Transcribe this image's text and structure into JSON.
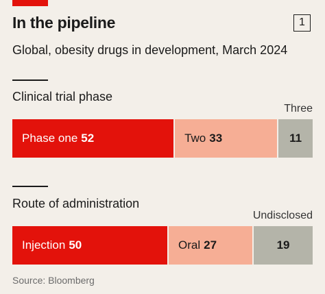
{
  "header": {
    "title": "In the pipeline",
    "figure_number": "1",
    "subtitle": "Global, obesity drugs in development, March 2024"
  },
  "source": "Source: Bloomberg",
  "colors": {
    "accent_red": "#e3120b",
    "light_salmon": "#f6ae95",
    "grey": "#b4b4a9"
  },
  "chart_data": [
    {
      "type": "bar",
      "title": "Clinical trial phase",
      "categories": [
        "Phase one",
        "Two",
        "Three"
      ],
      "values": [
        52,
        33,
        11
      ],
      "outside_label": "Three"
    },
    {
      "type": "bar",
      "title": "Route of administration",
      "categories": [
        "Injection",
        "Oral",
        "Undisclosed"
      ],
      "values": [
        50,
        27,
        19
      ],
      "outside_label": "Undisclosed"
    }
  ]
}
